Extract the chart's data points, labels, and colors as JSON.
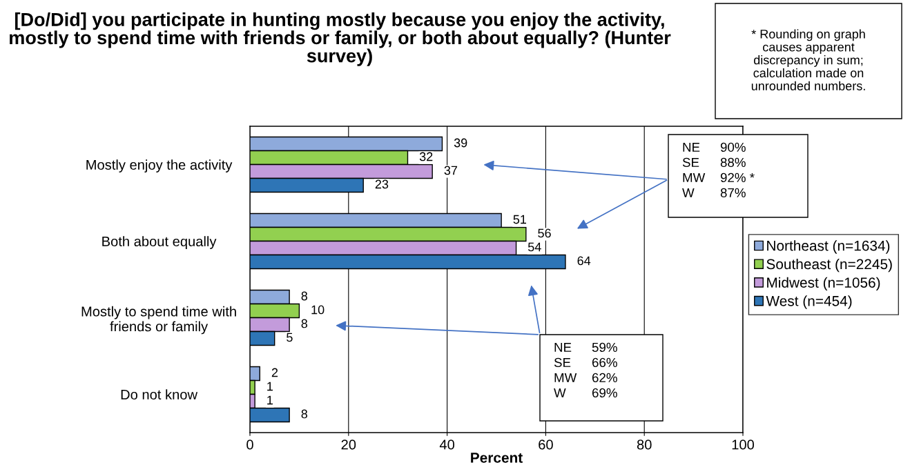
{
  "chart_data": {
    "type": "bar",
    "orientation": "horizontal",
    "title": "[Do/Did] you participate in hunting mostly because you enjoy the activity, mostly to spend time with friends or family, or both about equally? (Hunter survey)",
    "xlabel": "Percent",
    "categories": [
      "Mostly enjoy the activity",
      "Both about equally",
      "Mostly to spend time with\nfriends or family",
      "Do not know"
    ],
    "series": [
      {
        "name": "Northeast (n=1634)",
        "color": "#8eaadb",
        "values": [
          39,
          51,
          8,
          2
        ]
      },
      {
        "name": "Southeast (n=2245)",
        "color": "#92d050",
        "values": [
          32,
          56,
          10,
          1
        ]
      },
      {
        "name": "Midwest (n=1056)",
        "color": "#c39bdb",
        "values": [
          37,
          54,
          8,
          1
        ]
      },
      {
        "name": "West (n=454)",
        "color": "#2e75b6",
        "values": [
          23,
          64,
          5,
          8
        ]
      }
    ],
    "xlim": [
      0,
      100
    ],
    "xticks": [
      0,
      20,
      40,
      60,
      80,
      100
    ],
    "grid": "x",
    "legend": "right",
    "data_labels": true,
    "annotations": [
      "NE 90%\nSE 88%\nMW 92% *\nW 87%",
      "NE 59%\nSE 66%\nMW 62%\nW 69%",
      "* Rounding on graph\ncauses apparent\ndiscrepancy in sum;\ncalculation made on\nunrounded numbers."
    ]
  }
}
